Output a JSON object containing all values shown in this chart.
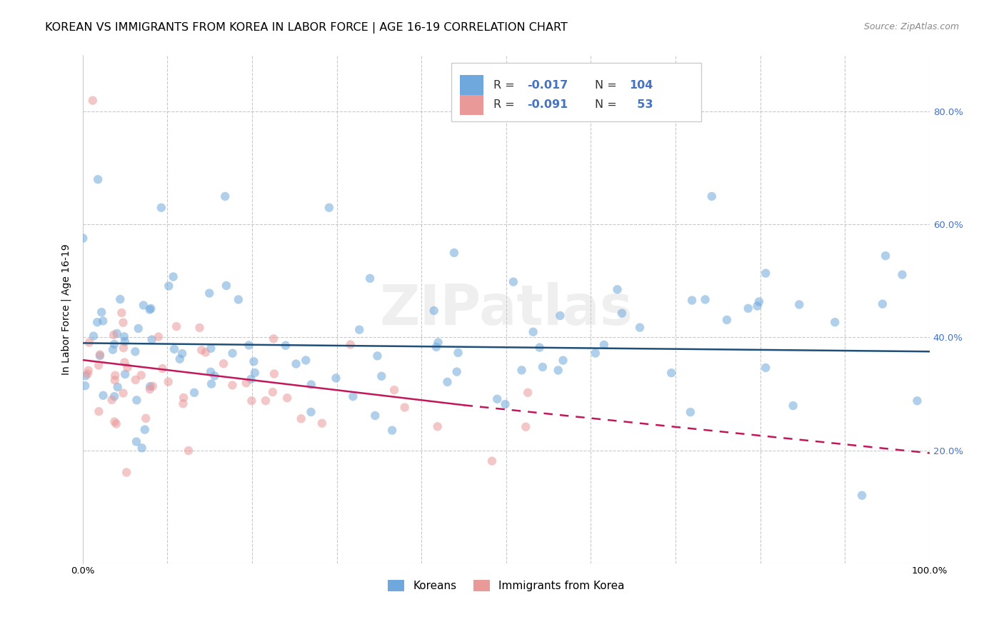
{
  "title": "KOREAN VS IMMIGRANTS FROM KOREA IN LABOR FORCE | AGE 16-19 CORRELATION CHART",
  "source": "Source: ZipAtlas.com",
  "ylabel": "In Labor Force | Age 16-19",
  "xlim": [
    0.0,
    1.0
  ],
  "ylim": [
    0.0,
    0.9
  ],
  "R_blue": -0.017,
  "N_blue": 104,
  "R_pink": -0.091,
  "N_pink": 53,
  "blue_color": "#6fa8dc",
  "pink_color": "#ea9999",
  "blue_line_color": "#1f4e79",
  "pink_line_color": "#c2185b",
  "grid_color": "#bbbbbb",
  "background_color": "#ffffff",
  "watermark": "ZIPatlas",
  "legend_label_blue": "Koreans",
  "legend_label_pink": "Immigrants from Korea",
  "title_fontsize": 11.5,
  "axis_label_fontsize": 10,
  "tick_fontsize": 9.5,
  "legend_fontsize": 12,
  "source_fontsize": 9,
  "marker_size": 80,
  "marker_alpha": 0.55,
  "line_width": 1.8
}
